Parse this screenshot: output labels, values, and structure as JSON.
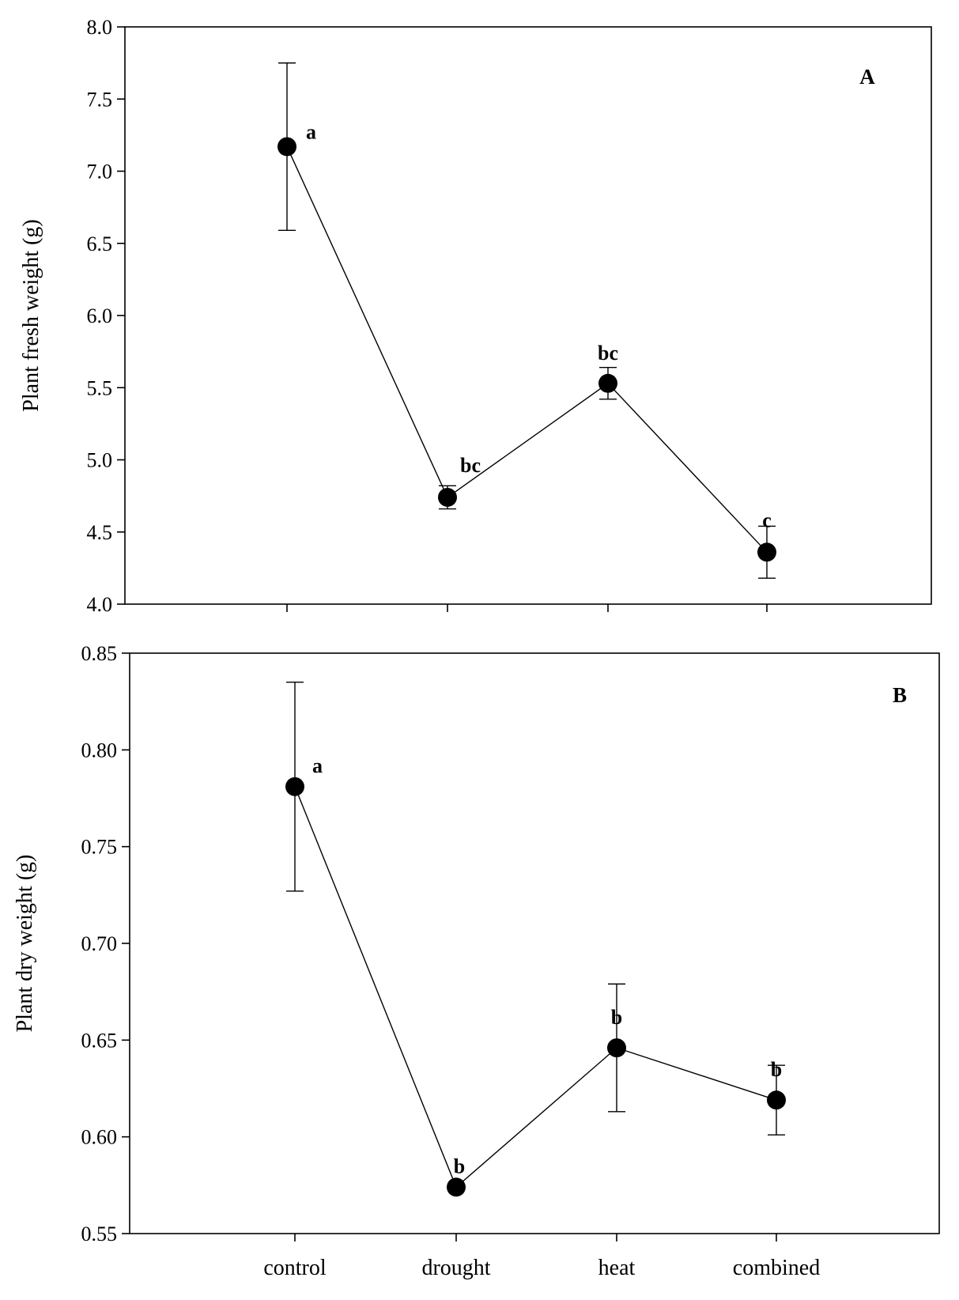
{
  "chart_data": [
    {
      "type": "line",
      "panel_label": "A",
      "title": "",
      "xlabel": "",
      "ylabel": "Plant fresh weight (g)",
      "categories": [
        "control",
        "drought",
        "heat",
        "combined"
      ],
      "values": [
        7.17,
        4.74,
        5.53,
        4.36
      ],
      "error": [
        0.58,
        0.08,
        0.11,
        0.18
      ],
      "significance_letters": [
        "a",
        "bc",
        "bc",
        "c"
      ],
      "ylim": [
        4.0,
        8.0
      ],
      "yticks": [
        4.0,
        4.5,
        5.0,
        5.5,
        6.0,
        6.5,
        7.0,
        7.5,
        8.0
      ],
      "ytick_labels": [
        "4.0",
        "4.5",
        "5.0",
        "5.5",
        "6.0",
        "6.5",
        "7.0",
        "7.5",
        "8.0"
      ],
      "grid": false,
      "show_category_labels": false
    },
    {
      "type": "line",
      "panel_label": "B",
      "title": "",
      "xlabel": "",
      "ylabel": "Plant dry weight (g)",
      "categories": [
        "control",
        "drought",
        "heat",
        "combined"
      ],
      "values": [
        0.781,
        0.574,
        0.646,
        0.619
      ],
      "error": [
        0.054,
        0.0,
        0.033,
        0.018
      ],
      "significance_letters": [
        "a",
        "b",
        "b",
        "b"
      ],
      "ylim": [
        0.55,
        0.85
      ],
      "yticks": [
        0.55,
        0.6,
        0.65,
        0.7,
        0.75,
        0.8,
        0.85
      ],
      "ytick_labels": [
        "0.55",
        "0.60",
        "0.65",
        "0.70",
        "0.75",
        "0.80",
        "0.85"
      ],
      "grid": false,
      "show_category_labels": true
    }
  ]
}
